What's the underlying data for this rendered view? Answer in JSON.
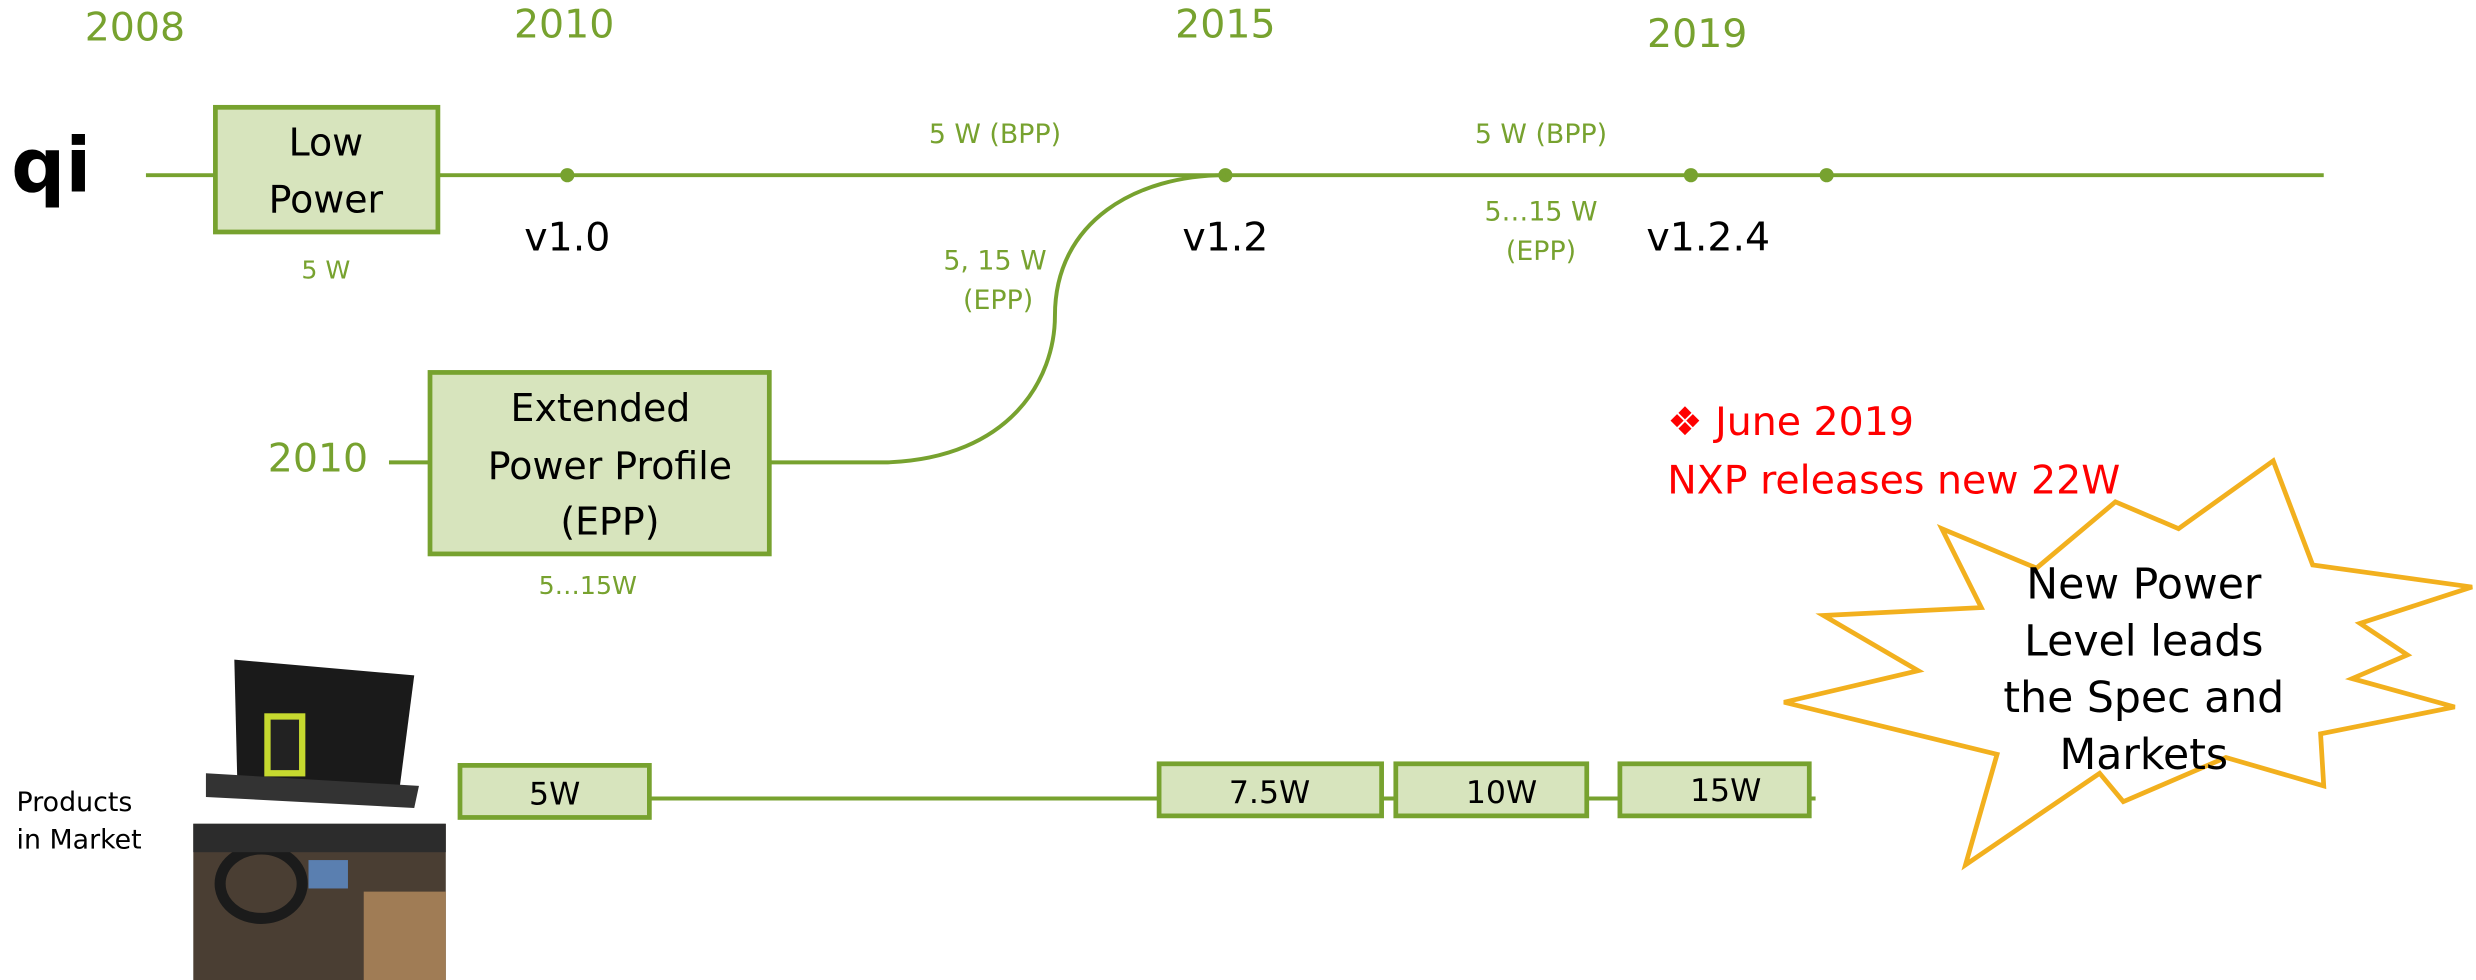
{
  "years": [
    "2008",
    "2010",
    "2015",
    "2019"
  ],
  "logo": "qi",
  "low_power": {
    "lines": [
      "Low",
      "Power"
    ],
    "power": "5 W"
  },
  "versions": [
    "v1.0",
    "v1.2",
    "v1.2.4"
  ],
  "bpp_labels": [
    "5 W (BPP)",
    "5 W (BPP)"
  ],
  "epp_labels": [
    [
      "5, 15 W",
      "(EPP)"
    ],
    [
      "5…15 W",
      "(EPP)"
    ]
  ],
  "epp": {
    "year": "2010",
    "lines": [
      "Extended",
      "Power Profile",
      "(EPP)"
    ],
    "power": "5…15W"
  },
  "products": {
    "label": [
      "Products",
      "in Market"
    ],
    "boxes": [
      "5W",
      "7.5W",
      "10W",
      "15W"
    ]
  },
  "note": {
    "lines": [
      "❖ June 2019",
      "NXP releases new 22W"
    ]
  },
  "burst": {
    "lines": [
      "New Power",
      "Level leads",
      "the Spec and",
      "Markets"
    ]
  }
}
